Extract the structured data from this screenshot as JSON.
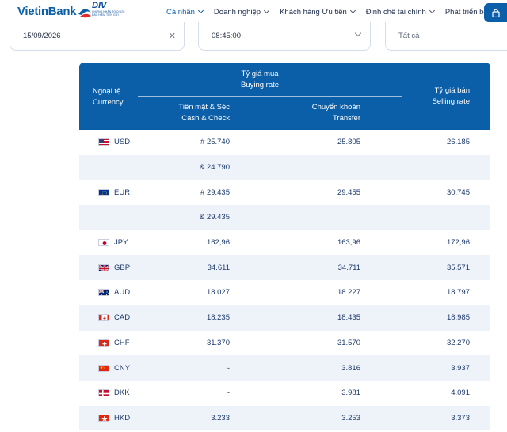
{
  "brand": {
    "name": "VietinBank",
    "badge_title": "DIV",
    "badge_sub": "CHỨNG NHẬN TỔ CHỨC BẢO HIỂM TIỀN GỬI"
  },
  "nav": {
    "items": [
      {
        "label": "Cá nhân",
        "active": true
      },
      {
        "label": "Doanh nghiệp",
        "active": false
      },
      {
        "label": "Khách hàng Ưu tiên",
        "active": false
      },
      {
        "label": "Định chế tài chính",
        "active": false
      },
      {
        "label": "Phát triển bền vững",
        "active": false
      }
    ],
    "lock_icon": "lock-icon"
  },
  "filters": {
    "date": "15/09/2026",
    "time": "08:45:00",
    "currency_filter": "Tất cả"
  },
  "table": {
    "header": {
      "currency_vi": "Ngoại tệ",
      "currency_en": "Currency",
      "buying_vi": "Tỷ giá mua",
      "buying_en": "Buying rate",
      "cash_vi": "Tiền mặt & Séc",
      "cash_en": "Cash & Check",
      "transfer_vi": "Chuyển khoản",
      "transfer_en": "Transfer",
      "selling_vi": "Tỷ giá bán",
      "selling_en": "Selling rate"
    },
    "rows": [
      {
        "flag": "us-flag",
        "code": "USD",
        "cash": "# 25.740",
        "transfer": "25.805",
        "selling": "26.185"
      },
      {
        "flag": "",
        "code": "",
        "cash": "& 24.790",
        "transfer": "",
        "selling": ""
      },
      {
        "flag": "eu-flag",
        "code": "EUR",
        "cash": "# 29.435",
        "transfer": "29.455",
        "selling": "30.745"
      },
      {
        "flag": "",
        "code": "",
        "cash": "& 29.435",
        "transfer": "",
        "selling": ""
      },
      {
        "flag": "jp-flag",
        "code": "JPY",
        "cash": "162,96",
        "transfer": "163,96",
        "selling": "172,96"
      },
      {
        "flag": "gb-flag",
        "code": "GBP",
        "cash": "34.611",
        "transfer": "34.711",
        "selling": "35.571"
      },
      {
        "flag": "au-flag",
        "code": "AUD",
        "cash": "18.027",
        "transfer": "18.227",
        "selling": "18.797"
      },
      {
        "flag": "ca-flag",
        "code": "CAD",
        "cash": "18.235",
        "transfer": "18.435",
        "selling": "18.985"
      },
      {
        "flag": "ch-flag",
        "code": "CHF",
        "cash": "31.370",
        "transfer": "31.570",
        "selling": "32.270"
      },
      {
        "flag": "cn-flag",
        "code": "CNY",
        "cash": "-",
        "transfer": "3.816",
        "selling": "3.937"
      },
      {
        "flag": "dk-flag",
        "code": "DKK",
        "cash": "-",
        "transfer": "3.981",
        "selling": "4.091"
      },
      {
        "flag": "hk-flag",
        "code": "HKD",
        "cash": "3.233",
        "transfer": "3.253",
        "selling": "3.373"
      }
    ]
  },
  "colors": {
    "brand_blue": "#0b5ea8",
    "row_alt": "#eef3f9",
    "text_navy": "#1d3a6b"
  }
}
